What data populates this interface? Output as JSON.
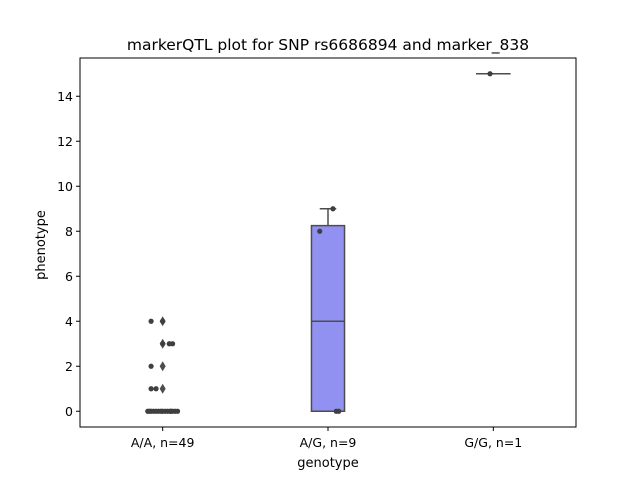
{
  "chart_data": {
    "type": "box",
    "title": "markerQTL plot for SNP rs6686894 and marker_838",
    "xlabel": "genotype",
    "ylabel": "phenotype",
    "categories": [
      "A/A, n=49",
      "A/G, n=9",
      "G/G, n=1"
    ],
    "ylim": [
      -0.7,
      15.7
    ],
    "yticks": [
      0,
      2,
      4,
      6,
      8,
      10,
      12,
      14
    ],
    "box_color": "#9191f2",
    "edge_color": "#4d4d4d",
    "point_color": "#3f3f3f",
    "boxes": [
      {
        "category": "A/A, n=49",
        "q1": 0,
        "median": 0,
        "q3": 0,
        "whisker_low": 0,
        "whisker_high": 0,
        "fliers": [
          1,
          2,
          3,
          4
        ]
      },
      {
        "category": "A/G, n=9",
        "q1": 0,
        "median": 4,
        "q3": 8.25,
        "whisker_low": 0,
        "whisker_high": 9,
        "fliers": []
      },
      {
        "category": "G/G, n=1",
        "q1": 15,
        "median": 15,
        "q3": 15,
        "whisker_low": 15,
        "whisker_high": 15,
        "fliers": []
      }
    ],
    "points": [
      {
        "category": 0,
        "y": 0,
        "jitter": -0.09
      },
      {
        "category": 0,
        "y": 0,
        "jitter": -0.07
      },
      {
        "category": 0,
        "y": 0,
        "jitter": -0.055
      },
      {
        "category": 0,
        "y": 0,
        "jitter": -0.04
      },
      {
        "category": 0,
        "y": 0,
        "jitter": -0.025
      },
      {
        "category": 0,
        "y": 0,
        "jitter": -0.01
      },
      {
        "category": 0,
        "y": 0,
        "jitter": 0.0
      },
      {
        "category": 0,
        "y": 0,
        "jitter": 0.015
      },
      {
        "category": 0,
        "y": 0,
        "jitter": 0.03
      },
      {
        "category": 0,
        "y": 0,
        "jitter": 0.045
      },
      {
        "category": 0,
        "y": 0,
        "jitter": 0.06
      },
      {
        "category": 0,
        "y": 0,
        "jitter": 0.075
      },
      {
        "category": 0,
        "y": 0,
        "jitter": 0.09
      },
      {
        "category": 0,
        "y": 0,
        "jitter": -0.08
      },
      {
        "category": 0,
        "y": 0,
        "jitter": 0.05
      },
      {
        "category": 0,
        "y": 1,
        "jitter": -0.07
      },
      {
        "category": 0,
        "y": 1,
        "jitter": -0.04
      },
      {
        "category": 0,
        "y": 2,
        "jitter": -0.07
      },
      {
        "category": 0,
        "y": 3,
        "jitter": 0.04
      },
      {
        "category": 0,
        "y": 3,
        "jitter": 0.06
      },
      {
        "category": 0,
        "y": 3,
        "jitter": 0.0
      },
      {
        "category": 0,
        "y": 4,
        "jitter": -0.07
      },
      {
        "category": 0,
        "y": 4,
        "jitter": 0.0
      },
      {
        "category": 1,
        "y": 0,
        "jitter": 0.05
      },
      {
        "category": 1,
        "y": 0,
        "jitter": 0.065
      },
      {
        "category": 1,
        "y": 8,
        "jitter": -0.05
      },
      {
        "category": 1,
        "y": 9,
        "jitter": 0.03
      },
      {
        "category": 2,
        "y": 15,
        "jitter": -0.02
      }
    ]
  }
}
